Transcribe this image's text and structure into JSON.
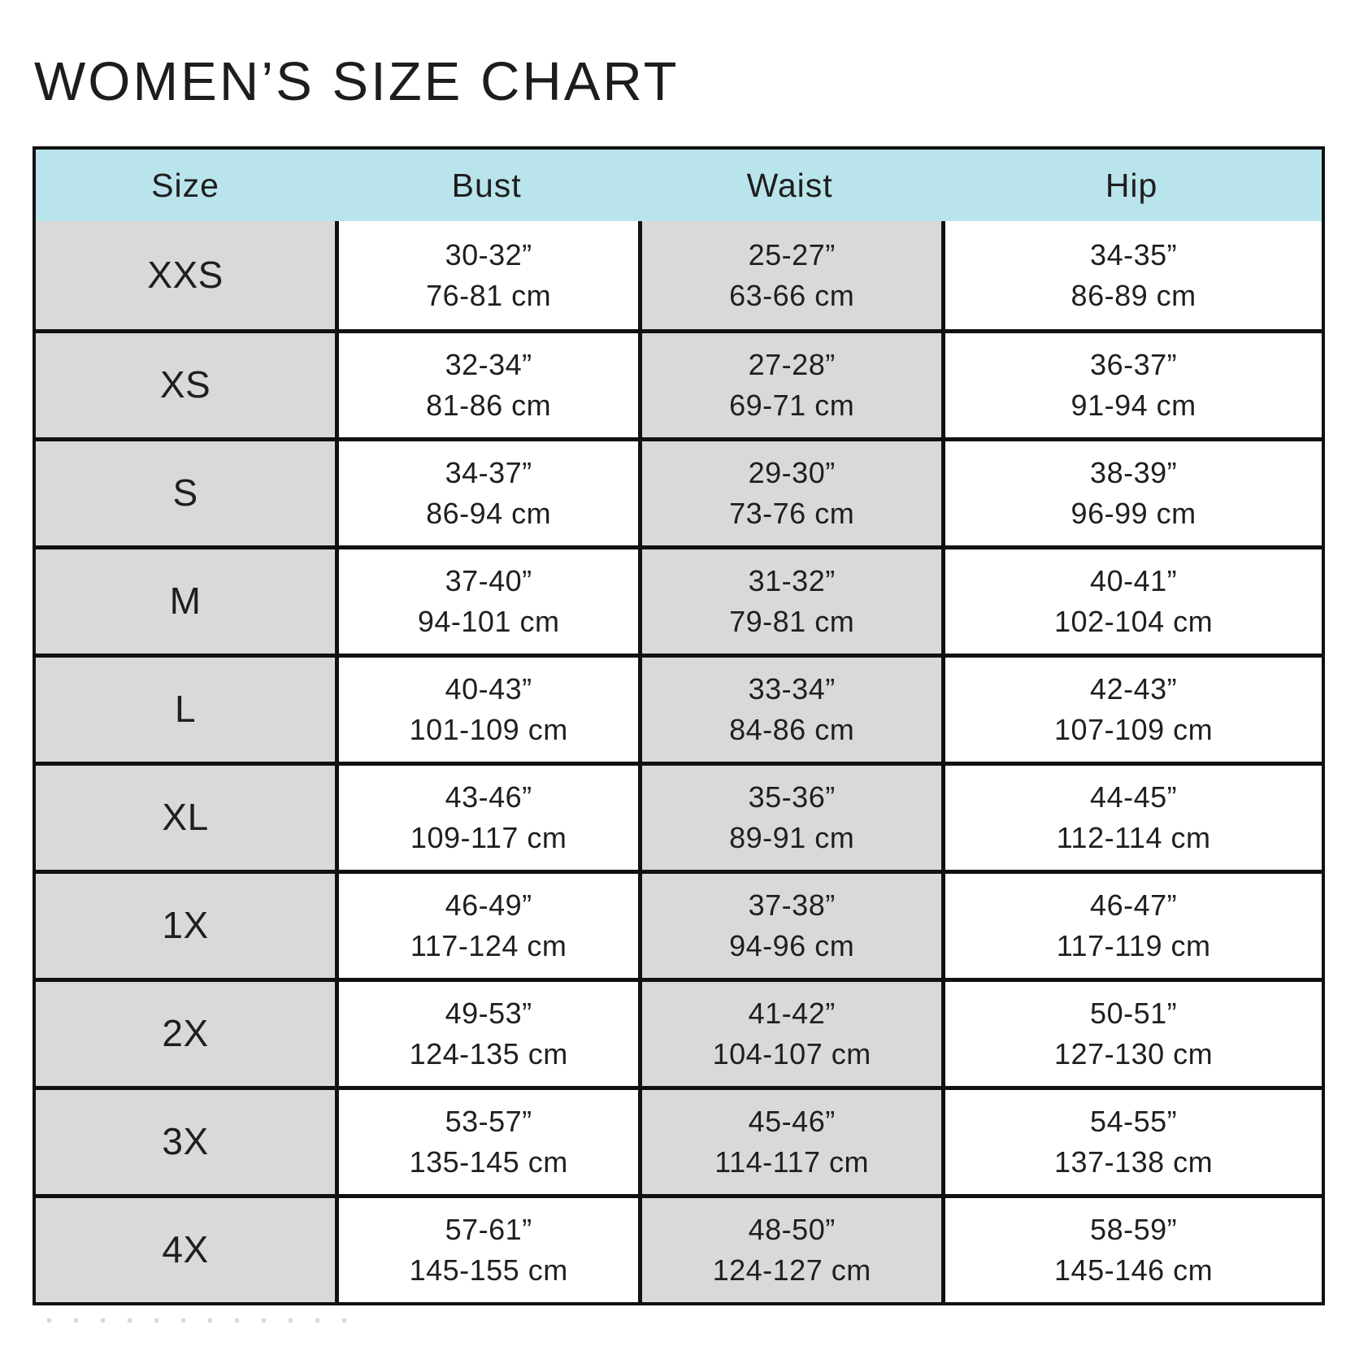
{
  "title": "WOMEN’S SIZE CHART",
  "colors": {
    "header_bg": "#b9e4ec",
    "shaded_cell_bg": "#d9d9db",
    "border": "#111111",
    "text": "#1f1f1f"
  },
  "chart_data": {
    "type": "table",
    "title": "WOMEN’S SIZE CHART",
    "columns": [
      "Size",
      "Bust",
      "Waist",
      "Hip"
    ],
    "legend_position": "none",
    "grid": "on",
    "rows": [
      {
        "size": "XXS",
        "bust": {
          "inches": "30-32”",
          "cm": "76-81 cm"
        },
        "waist": {
          "inches": "25-27”",
          "cm": "63-66 cm"
        },
        "hip": {
          "inches": "34-35”",
          "cm": "86-89 cm"
        }
      },
      {
        "size": "XS",
        "bust": {
          "inches": "32-34”",
          "cm": "81-86 cm"
        },
        "waist": {
          "inches": "27-28”",
          "cm": "69-71 cm"
        },
        "hip": {
          "inches": "36-37”",
          "cm": "91-94 cm"
        }
      },
      {
        "size": "S",
        "bust": {
          "inches": "34-37”",
          "cm": "86-94 cm"
        },
        "waist": {
          "inches": "29-30”",
          "cm": "73-76 cm"
        },
        "hip": {
          "inches": "38-39”",
          "cm": "96-99 cm"
        }
      },
      {
        "size": "M",
        "bust": {
          "inches": "37-40”",
          "cm": "94-101 cm"
        },
        "waist": {
          "inches": "31-32”",
          "cm": "79-81 cm"
        },
        "hip": {
          "inches": "40-41”",
          "cm": "102-104 cm"
        }
      },
      {
        "size": "L",
        "bust": {
          "inches": "40-43”",
          "cm": "101-109 cm"
        },
        "waist": {
          "inches": "33-34”",
          "cm": "84-86 cm"
        },
        "hip": {
          "inches": "42-43”",
          "cm": "107-109 cm"
        }
      },
      {
        "size": "XL",
        "bust": {
          "inches": "43-46”",
          "cm": "109-117 cm"
        },
        "waist": {
          "inches": "35-36”",
          "cm": "89-91 cm"
        },
        "hip": {
          "inches": "44-45”",
          "cm": "112-114 cm"
        }
      },
      {
        "size": "1X",
        "bust": {
          "inches": "46-49”",
          "cm": "117-124 cm"
        },
        "waist": {
          "inches": "37-38”",
          "cm": "94-96 cm"
        },
        "hip": {
          "inches": "46-47”",
          "cm": "117-119 cm"
        }
      },
      {
        "size": "2X",
        "bust": {
          "inches": "49-53”",
          "cm": "124-135 cm"
        },
        "waist": {
          "inches": "41-42”",
          "cm": "104-107 cm"
        },
        "hip": {
          "inches": "50-51”",
          "cm": "127-130 cm"
        }
      },
      {
        "size": "3X",
        "bust": {
          "inches": "53-57”",
          "cm": "135-145 cm"
        },
        "waist": {
          "inches": "45-46”",
          "cm": "114-117 cm"
        },
        "hip": {
          "inches": "54-55”",
          "cm": "137-138 cm"
        }
      },
      {
        "size": "4X",
        "bust": {
          "inches": "57-61”",
          "cm": "145-155 cm"
        },
        "waist": {
          "inches": "48-50”",
          "cm": "124-127 cm"
        },
        "hip": {
          "inches": "58-59”",
          "cm": "145-146 cm"
        }
      }
    ]
  }
}
